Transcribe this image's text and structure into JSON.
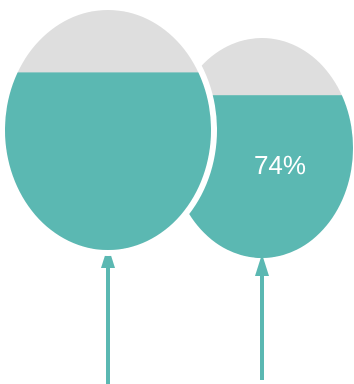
{
  "chart_data": {
    "type": "balloon-fill",
    "title": "",
    "series": [
      {
        "value": 0.74,
        "label": ""
      },
      {
        "value": 0.74,
        "label": "74%"
      }
    ]
  },
  "colors": {
    "fill": "#5bb8b2",
    "empty": "#dedede",
    "background": "#ffffff",
    "label": "#ffffff"
  }
}
